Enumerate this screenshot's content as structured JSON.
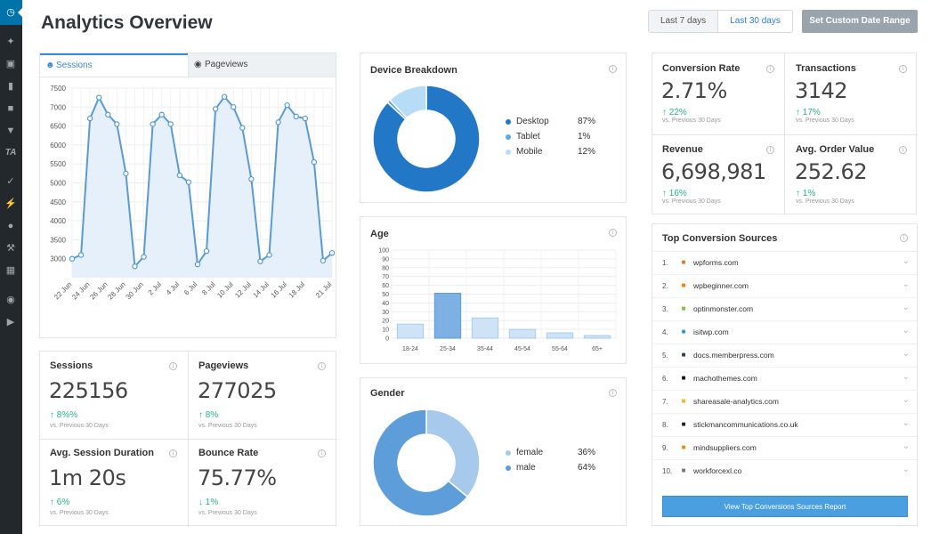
{
  "sidebar": {
    "icons": [
      "dashboard-icon",
      "pin-icon",
      "media-icon",
      "pages-icon",
      "comments-icon",
      "feedback-icon",
      "ta-icon",
      "appearance-icon",
      "plugins-icon",
      "users-icon",
      "tools-icon",
      "settings-icon",
      "insights-icon",
      "play-icon"
    ]
  },
  "header": {
    "title": "Analytics Overview",
    "range_7": "Last 7 days",
    "range_30": "Last 30 days",
    "custom": "Set Custom Date Range"
  },
  "traffic": {
    "tab_sessions": "Sessions",
    "tab_pageviews": "Pageviews"
  },
  "chart_data": [
    {
      "type": "area",
      "x": [
        "22 Jun",
        "23 Jun",
        "24 Jun",
        "25 Jun",
        "26 Jun",
        "27 Jun",
        "28 Jun",
        "29 Jun",
        "30 Jun",
        "1 Jul",
        "2 Jul",
        "3 Jul",
        "4 Jul",
        "5 Jul",
        "6 Jul",
        "7 Jul",
        "8 Jul",
        "9 Jul",
        "10 Jul",
        "11 Jul",
        "12 Jul",
        "13 Jul",
        "14 Jul",
        "15 Jul",
        "16 Jul",
        "17 Jul",
        "18 Jul",
        "19 Jul",
        "20 Jul",
        "21 Jul"
      ],
      "xtick_labels": [
        "22 Jun",
        "24 Jun",
        "26 Jun",
        "28 Jun",
        "30 Jun",
        "2 Jul",
        "4 Jul",
        "6 Jul",
        "8 Jul",
        "10 Jul",
        "12 Jul",
        "14 Jul",
        "16 Jul",
        "18 Jul",
        "21 Jul"
      ],
      "values": [
        3000,
        3100,
        6700,
        7250,
        6800,
        6550,
        5250,
        2800,
        3050,
        6550,
        6800,
        6550,
        5200,
        5020,
        2850,
        3200,
        6950,
        7270,
        7000,
        6450,
        5100,
        2930,
        3100,
        6600,
        7050,
        6750,
        6700,
        5550,
        2950,
        3150
      ],
      "yticks": [
        3000,
        3500,
        4000,
        4500,
        5000,
        5500,
        6000,
        6500,
        7000,
        7500
      ],
      "ylim": [
        2500,
        7500
      ],
      "color": "#5a9bd5"
    },
    {
      "type": "pie",
      "title": "Device Breakdown",
      "categories": [
        "Desktop",
        "Tablet",
        "Mobile"
      ],
      "values": [
        87,
        1,
        12
      ],
      "labels": [
        "87%",
        "1%",
        "12%"
      ],
      "colors": [
        "#2277c7",
        "#5aa8e8",
        "#b7dcf8"
      ]
    },
    {
      "type": "bar",
      "title": "Age",
      "categories": [
        "18-24",
        "25-34",
        "35-44",
        "45-54",
        "55-64",
        "65+"
      ],
      "values": [
        16,
        51,
        23,
        10,
        6,
        3
      ],
      "yticks": [
        0,
        10,
        20,
        30,
        40,
        50,
        60,
        70,
        80,
        90,
        100
      ],
      "ylim": [
        0,
        100
      ]
    },
    {
      "type": "pie",
      "title": "Gender",
      "categories": [
        "female",
        "male"
      ],
      "values": [
        36,
        64
      ],
      "labels": [
        "36%",
        "64%"
      ],
      "colors": [
        "#a7c9ec",
        "#5d9dd9"
      ]
    }
  ],
  "stats": {
    "sessions": {
      "label": "Sessions",
      "value": "225156",
      "change": "8%%",
      "sub": "vs. Previous 30 Days"
    },
    "pageviews": {
      "label": "Pageviews",
      "value": "277025",
      "change": "8%",
      "sub": "vs. Previous 30 Days"
    },
    "duration": {
      "label": "Avg. Session Duration",
      "value": "1m 20s",
      "change": "6%",
      "sub": "vs. Previous 30 Days"
    },
    "bounce": {
      "label": "Bounce Rate",
      "value": "75.77%",
      "change": "1%",
      "sub": "vs. Previous 30 Days"
    },
    "conversion": {
      "label": "Conversion Rate",
      "value": "2.71%",
      "change": "22%",
      "sub": "vs. Previous 30 Days"
    },
    "transactions": {
      "label": "Transactions",
      "value": "3142",
      "change": "17%",
      "sub": "vs. Previous 30 Days"
    },
    "revenue": {
      "label": "Revenue",
      "value": "6,698,981",
      "change": "16%",
      "sub": "vs. Previous 30 Days"
    },
    "aov": {
      "label": "Avg. Order Value",
      "value": "252.62",
      "change": "1%",
      "sub": "vs. Previous 30 Days"
    }
  },
  "sources": {
    "title": "Top Conversion Sources",
    "items": [
      {
        "num": "1.",
        "name": "wpforms.com",
        "icon": "wpforms-favicon",
        "color": "#e27730"
      },
      {
        "num": "2.",
        "name": "wpbeginner.com",
        "icon": "wpbeginner-favicon",
        "color": "#ff7a00"
      },
      {
        "num": "3.",
        "name": "optinmonster.com",
        "icon": "optinmonster-favicon",
        "color": "#7cc142"
      },
      {
        "num": "4.",
        "name": "isitwp.com",
        "icon": "isitwp-favicon",
        "color": "#2a95d6"
      },
      {
        "num": "5.",
        "name": "docs.memberpress.com",
        "icon": "memberpress-favicon",
        "color": "#2c3e50"
      },
      {
        "num": "6.",
        "name": "machothemes.com",
        "icon": "machothemes-favicon",
        "color": "#111111"
      },
      {
        "num": "7.",
        "name": "shareasale-analytics.com",
        "icon": "shareasale-favicon",
        "color": "#f3b724"
      },
      {
        "num": "8.",
        "name": "stickmancommunications.co.uk",
        "icon": "stickman-favicon",
        "color": "#222222"
      },
      {
        "num": "9.",
        "name": "mindsuppliers.com",
        "icon": "mindsuppliers-favicon",
        "color": "#e08a1e"
      },
      {
        "num": "10.",
        "name": "workforcexl.co",
        "icon": "workforcexl-favicon",
        "color": "#6b7b8c"
      }
    ],
    "report_button": "View Top Conversions Sources Report"
  }
}
